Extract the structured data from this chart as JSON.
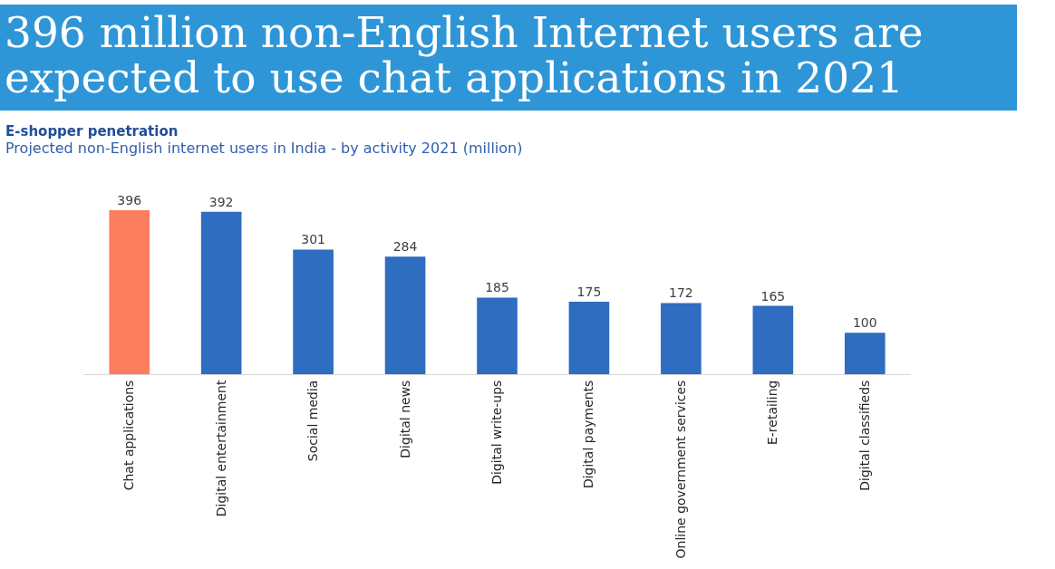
{
  "chart_data": {
    "type": "bar",
    "title": "396 million non-English Internet users are expected to use chat applications in 2021",
    "subtitle": "E-shopper penetration\nProjected non-English internet users in India - by activity 2021 (million)",
    "categories": [
      "Chat applications",
      "Digital entertainment",
      "Social media",
      "Digital news",
      "Digital write-ups",
      "Digital payments",
      "Online government services",
      "E-retailing",
      "Digital classifieds"
    ],
    "values": [
      396,
      392,
      301,
      284,
      185,
      175,
      172,
      165,
      100
    ],
    "colors": [
      "#fd7e5f",
      "#2e6dbf",
      "#2e6dbf",
      "#2e6dbf",
      "#2e6dbf",
      "#2e6dbf",
      "#2e6dbf",
      "#2e6dbf",
      "#2e6dbf"
    ],
    "data_labels": true
  }
}
